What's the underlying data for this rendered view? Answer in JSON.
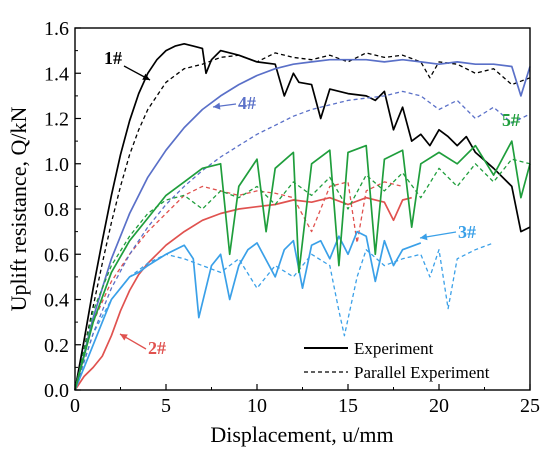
{
  "chart_data": {
    "type": "line",
    "xlabel": "Displacement, u/mm",
    "ylabel": "Uplift resistance, Q/kN",
    "xlim": [
      0,
      25
    ],
    "ylim": [
      0,
      1.6
    ],
    "xticks": [
      0,
      5,
      10,
      15,
      20,
      25
    ],
    "yticks": [
      0.0,
      0.2,
      0.4,
      0.6,
      0.8,
      1.0,
      1.2,
      1.4,
      1.6
    ],
    "grid": false,
    "legend": {
      "position": "bottom-right",
      "entries": [
        {
          "label": "Experiment",
          "style": "solid"
        },
        {
          "label": "Parallel Experiment",
          "style": "dashed"
        }
      ]
    },
    "annotations": [
      {
        "text": "1#",
        "color": "#000000"
      },
      {
        "text": "2#",
        "color": "#e0524f"
      },
      {
        "text": "3#",
        "color": "#3aa0e8"
      },
      {
        "text": "4#",
        "color": "#5a70c8"
      },
      {
        "text": "5#",
        "color": "#1f9e3c"
      }
    ],
    "series": [
      {
        "specimen": "1#",
        "style": "solid",
        "color": "#000000",
        "x": [
          0,
          0.5,
          1,
          1.5,
          2,
          2.5,
          3,
          3.5,
          4,
          4.5,
          5,
          5.5,
          6,
          6.5,
          7,
          7.2,
          7.5,
          8,
          9,
          10,
          11,
          11.5,
          12,
          12.3,
          13,
          13.5,
          14,
          15,
          16,
          16.5,
          17,
          17.5,
          18,
          18.5,
          19,
          19.5,
          20,
          20.5,
          21,
          21.5,
          22,
          23,
          24,
          24.5,
          25
        ],
        "y": [
          0,
          0.22,
          0.45,
          0.66,
          0.86,
          1.04,
          1.19,
          1.31,
          1.4,
          1.46,
          1.5,
          1.52,
          1.53,
          1.52,
          1.51,
          1.4,
          1.46,
          1.5,
          1.48,
          1.45,
          1.44,
          1.3,
          1.4,
          1.36,
          1.35,
          1.2,
          1.33,
          1.31,
          1.3,
          1.28,
          1.32,
          1.15,
          1.25,
          1.1,
          1.13,
          1.08,
          1.15,
          1.12,
          1.08,
          1.12,
          1.05,
          0.98,
          0.9,
          0.7,
          0.72
        ]
      },
      {
        "specimen": "1#",
        "style": "dashed",
        "color": "#000000",
        "x": [
          0,
          0.5,
          1,
          1.5,
          2,
          2.5,
          3,
          3.5,
          4,
          5,
          6,
          7,
          8,
          9,
          10,
          11,
          12,
          13,
          14,
          15,
          16,
          17,
          18,
          19,
          19.5,
          20,
          21,
          22,
          23,
          24,
          25
        ],
        "y": [
          0,
          0.18,
          0.37,
          0.56,
          0.74,
          0.9,
          1.04,
          1.15,
          1.24,
          1.36,
          1.42,
          1.44,
          1.47,
          1.48,
          1.45,
          1.49,
          1.47,
          1.46,
          1.48,
          1.45,
          1.49,
          1.47,
          1.48,
          1.45,
          1.38,
          1.45,
          1.44,
          1.4,
          1.42,
          1.35,
          1.38
        ]
      },
      {
        "specimen": "2#",
        "style": "solid",
        "color": "#e0524f",
        "x": [
          0,
          0.5,
          1,
          1.5,
          2,
          2.5,
          3,
          3.5,
          4,
          4.5,
          5,
          6,
          7,
          8,
          9,
          10,
          11,
          12,
          13,
          14,
          15,
          16,
          17,
          17.5,
          18,
          18.5
        ],
        "y": [
          0,
          0.06,
          0.1,
          0.15,
          0.24,
          0.35,
          0.44,
          0.51,
          0.56,
          0.6,
          0.64,
          0.7,
          0.75,
          0.78,
          0.8,
          0.81,
          0.82,
          0.84,
          0.83,
          0.85,
          0.82,
          0.85,
          0.83,
          0.75,
          0.84,
          0.85
        ]
      },
      {
        "specimen": "2#",
        "style": "dashed",
        "color": "#e0524f",
        "x": [
          0,
          1,
          2,
          3,
          4,
          5,
          6,
          7,
          8,
          9,
          10,
          11,
          12,
          13,
          14,
          15,
          15.5,
          16,
          17,
          18
        ],
        "y": [
          0,
          0.3,
          0.48,
          0.6,
          0.7,
          0.78,
          0.86,
          0.9,
          0.88,
          0.86,
          0.88,
          0.87,
          0.85,
          0.7,
          0.9,
          0.92,
          0.65,
          0.88,
          0.92,
          0.9
        ]
      },
      {
        "specimen": "3#",
        "style": "solid",
        "color": "#3aa0e8",
        "x": [
          0,
          0.5,
          1,
          1.5,
          2,
          2.5,
          3,
          3.5,
          4,
          5,
          6,
          6.5,
          6.8,
          7.5,
          8,
          8.5,
          9,
          9.5,
          10,
          11,
          11.5,
          12,
          12.5,
          13,
          13.5,
          14,
          14.5,
          15,
          15.5,
          16,
          16.5,
          17,
          17.5,
          18,
          19
        ],
        "y": [
          0,
          0.1,
          0.2,
          0.3,
          0.4,
          0.45,
          0.5,
          0.52,
          0.55,
          0.6,
          0.64,
          0.58,
          0.32,
          0.55,
          0.6,
          0.4,
          0.55,
          0.62,
          0.65,
          0.5,
          0.62,
          0.66,
          0.45,
          0.64,
          0.66,
          0.58,
          0.68,
          0.6,
          0.7,
          0.68,
          0.48,
          0.66,
          0.55,
          0.62,
          0.65
        ]
      },
      {
        "specimen": "3#",
        "style": "dashed",
        "color": "#3aa0e8",
        "x": [
          0,
          1,
          2,
          3,
          4,
          5,
          6,
          7,
          8,
          9,
          10,
          11,
          12,
          13,
          14,
          14.5,
          14.8,
          15.5,
          16,
          17,
          18,
          19,
          19.5,
          20,
          20.5,
          21,
          22,
          23
        ],
        "y": [
          0,
          0.25,
          0.4,
          0.5,
          0.56,
          0.6,
          0.58,
          0.55,
          0.52,
          0.58,
          0.45,
          0.55,
          0.5,
          0.6,
          0.55,
          0.35,
          0.24,
          0.5,
          0.62,
          0.55,
          0.58,
          0.6,
          0.5,
          0.62,
          0.36,
          0.58,
          0.62,
          0.65
        ]
      },
      {
        "specimen": "4#",
        "style": "solid",
        "color": "#5a70c8",
        "x": [
          0,
          1,
          2,
          3,
          4,
          5,
          6,
          7,
          8,
          9,
          10,
          11,
          12,
          13,
          14,
          15,
          16,
          17,
          18,
          19,
          20,
          21,
          22,
          23,
          24,
          24.5,
          25
        ],
        "y": [
          0,
          0.32,
          0.58,
          0.78,
          0.94,
          1.06,
          1.16,
          1.24,
          1.3,
          1.35,
          1.39,
          1.42,
          1.44,
          1.45,
          1.46,
          1.46,
          1.46,
          1.45,
          1.46,
          1.45,
          1.44,
          1.45,
          1.44,
          1.44,
          1.43,
          1.3,
          1.43
        ]
      },
      {
        "specimen": "4#",
        "style": "dashed",
        "color": "#5a70c8",
        "x": [
          0,
          1,
          2,
          3,
          4,
          5,
          6,
          7,
          8,
          9,
          10,
          11,
          12,
          13,
          14,
          15,
          16,
          17,
          18,
          19,
          20,
          21,
          22,
          23,
          24,
          25
        ],
        "y": [
          0,
          0.25,
          0.45,
          0.6,
          0.72,
          0.82,
          0.9,
          0.97,
          1.03,
          1.08,
          1.13,
          1.17,
          1.21,
          1.24,
          1.26,
          1.28,
          1.29,
          1.3,
          1.32,
          1.3,
          1.24,
          1.28,
          1.2,
          1.25,
          1.18,
          1.22
        ]
      },
      {
        "specimen": "5#",
        "style": "solid",
        "color": "#1f9e3c",
        "x": [
          0,
          1,
          2,
          3,
          4,
          5,
          6,
          7,
          8,
          8.5,
          9,
          10,
          10.5,
          11,
          12,
          12.3,
          13,
          14,
          14.5,
          15,
          16,
          16.5,
          17,
          18,
          18.5,
          19,
          20,
          21,
          22,
          23,
          24,
          24.5,
          25
        ],
        "y": [
          0,
          0.3,
          0.52,
          0.66,
          0.76,
          0.86,
          0.92,
          0.98,
          1.0,
          0.6,
          0.9,
          1.02,
          0.7,
          0.98,
          1.05,
          0.52,
          1.0,
          1.06,
          0.55,
          1.05,
          1.08,
          0.6,
          1.02,
          1.06,
          0.72,
          1.0,
          1.05,
          1.0,
          1.08,
          0.95,
          1.1,
          0.85,
          1.0
        ]
      },
      {
        "specimen": "5#",
        "style": "dashed",
        "color": "#1f9e3c",
        "x": [
          0,
          1,
          2,
          3,
          4,
          5,
          6,
          7,
          8,
          9,
          10,
          11,
          12,
          13,
          14,
          15,
          16,
          17,
          18,
          19,
          20,
          21,
          22,
          23,
          24,
          25
        ],
        "y": [
          0,
          0.35,
          0.55,
          0.68,
          0.78,
          0.84,
          0.86,
          0.8,
          0.88,
          0.85,
          0.9,
          0.82,
          0.92,
          0.86,
          0.94,
          0.8,
          0.95,
          0.88,
          0.96,
          0.85,
          0.98,
          0.9,
          1.0,
          0.92,
          1.02,
          1.0
        ]
      }
    ]
  }
}
